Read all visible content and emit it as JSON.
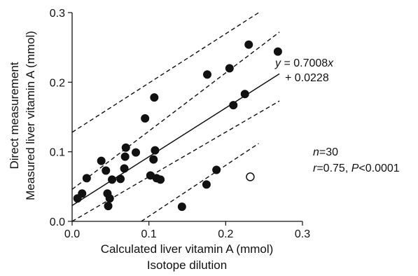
{
  "chart_data": {
    "type": "scatter",
    "xlabel": [
      "Calculated liver vitamin A (mmol)",
      "Isotope dilution"
    ],
    "ylabel": [
      "Direct measurement",
      "Measured liver vitamin A (mmol)"
    ],
    "xlim": [
      0.0,
      0.3
    ],
    "ylim": [
      0.0,
      0.3
    ],
    "x_ticks": [
      "0.0",
      "0.1",
      "0.2",
      "0.3"
    ],
    "y_ticks": [
      "0.0",
      "0.1",
      "0.2",
      "0.3"
    ],
    "x_tick_values": [
      0.0,
      0.1,
      0.2,
      0.3
    ],
    "y_tick_values": [
      0.0,
      0.1,
      0.2,
      0.3
    ],
    "grid": false,
    "series": [
      {
        "marker": "filled-circle",
        "color": "#111111",
        "points": [
          [
            0.007,
            0.033
          ],
          [
            0.013,
            0.04
          ],
          [
            0.019,
            0.062
          ],
          [
            0.038,
            0.087
          ],
          [
            0.044,
            0.073
          ],
          [
            0.046,
            0.04
          ],
          [
            0.047,
            0.022
          ],
          [
            0.049,
            0.033
          ],
          [
            0.052,
            0.06
          ],
          [
            0.063,
            0.061
          ],
          [
            0.068,
            0.076
          ],
          [
            0.069,
            0.093
          ],
          [
            0.07,
            0.106
          ],
          [
            0.083,
            0.099
          ],
          [
            0.095,
            0.148
          ],
          [
            0.102,
            0.066
          ],
          [
            0.106,
            0.089
          ],
          [
            0.107,
            0.178
          ],
          [
            0.108,
            0.102
          ],
          [
            0.11,
            0.062
          ],
          [
            0.115,
            0.06
          ],
          [
            0.143,
            0.021
          ],
          [
            0.175,
            0.053
          ],
          [
            0.176,
            0.211
          ],
          [
            0.188,
            0.074
          ],
          [
            0.205,
            0.22
          ],
          [
            0.21,
            0.167
          ],
          [
            0.225,
            0.183
          ],
          [
            0.23,
            0.254
          ],
          [
            0.268,
            0.244
          ]
        ]
      },
      {
        "marker": "open-circle",
        "color": "#111111",
        "points": [
          [
            0.232,
            0.064
          ]
        ]
      }
    ],
    "regression": {
      "slope": 0.7008,
      "intercept": 0.0228,
      "x_range": [
        0.0,
        0.27
      ],
      "style": "solid"
    },
    "prediction_band": {
      "x_range": [
        0.0,
        0.243
      ],
      "upper_at_ends": [
        0.128,
        0.3
      ],
      "lower_at_ends": [
        -0.066,
        0.112
      ],
      "style": "dashed"
    },
    "confidence_band": {
      "x_range": [
        0.0,
        0.27
      ],
      "upper_at_ends": [
        0.046,
        0.272
      ],
      "lower_at_ends": [
        0.0,
        0.173
      ],
      "style": "dashed"
    },
    "annotations": {
      "equation_line1": {
        "italic": "y",
        "text": " = 0.7008",
        "italic2": "x"
      },
      "equation_line2": "+ 0.0228",
      "n_label": {
        "italic": "n",
        "text": "=30"
      },
      "stats_label": {
        "r_italic": "r",
        "r_text": "=0.75, ",
        "p_italic": "P",
        "p_text": "<0.0001"
      }
    }
  }
}
